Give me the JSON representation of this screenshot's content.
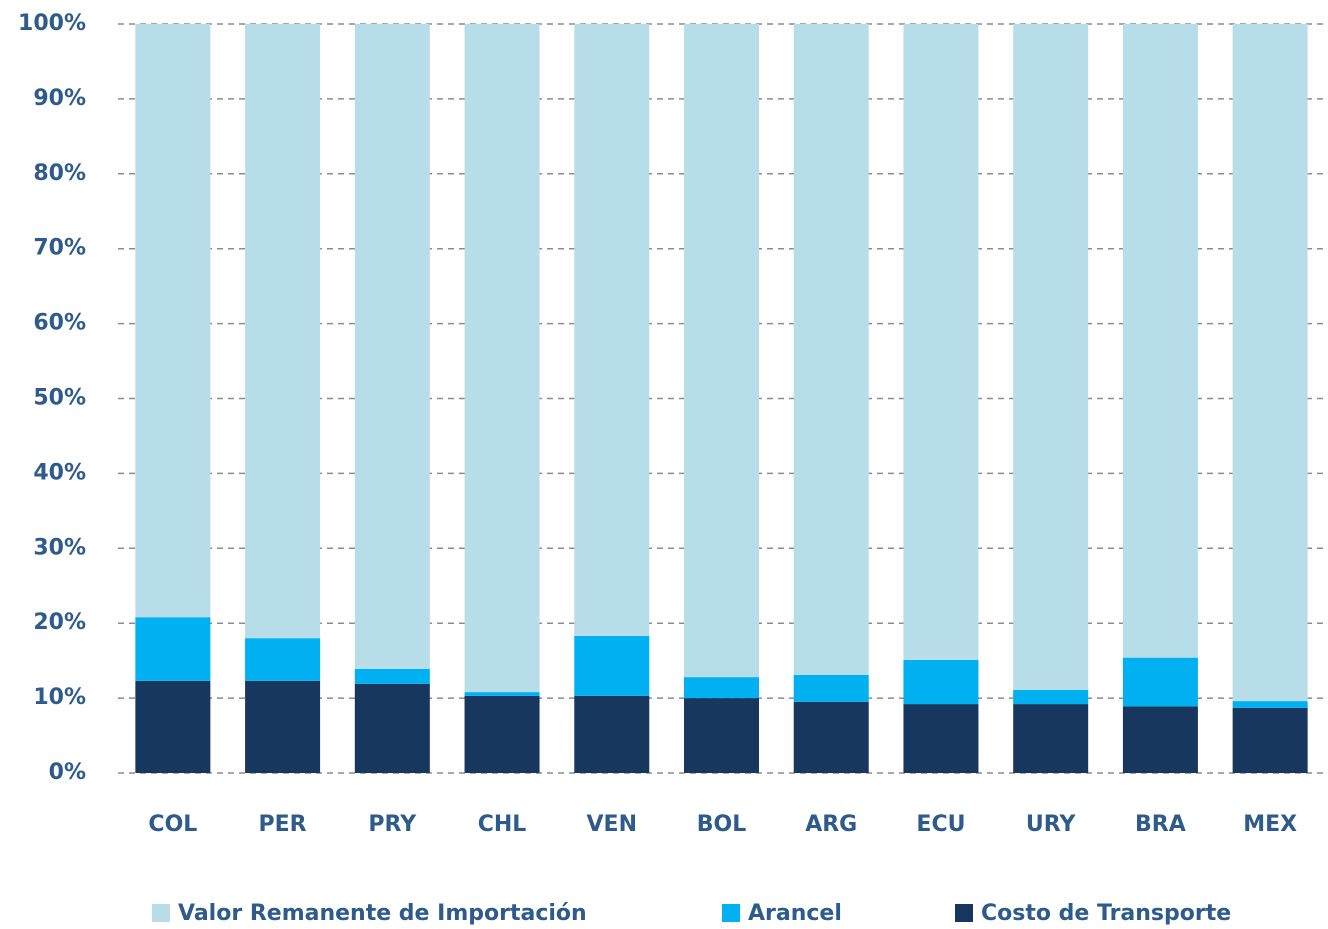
{
  "chart_data": {
    "type": "stacked_bar",
    "categories": [
      "COL",
      "PER",
      "PRY",
      "CHL",
      "VEN",
      "BOL",
      "ARG",
      "ECU",
      "URY",
      "BRA",
      "MEX"
    ],
    "series": [
      {
        "name": "Valor Remanente de Importación",
        "color": "#b7dde8",
        "values": [
          79.2,
          82.0,
          86.1,
          89.2,
          81.7,
          87.2,
          86.9,
          84.9,
          88.9,
          84.6,
          90.4
        ]
      },
      {
        "name": "Arancel",
        "color": "#00b0f0",
        "values": [
          8.5,
          5.7,
          2.0,
          0.5,
          8.0,
          2.8,
          3.6,
          5.9,
          1.9,
          6.5,
          0.9
        ]
      },
      {
        "name": "Costo de Transporte",
        "color": "#17375e",
        "values": [
          12.3,
          12.3,
          11.9,
          10.3,
          10.3,
          10.0,
          9.5,
          9.2,
          9.2,
          8.9,
          8.7
        ]
      }
    ],
    "ylim": [
      0,
      100
    ],
    "yticks": [
      {
        "value": 0,
        "label": "0%"
      },
      {
        "value": 10,
        "label": "10%"
      },
      {
        "value": 20,
        "label": "20%"
      },
      {
        "value": 30,
        "label": "30%"
      },
      {
        "value": 40,
        "label": "40%"
      },
      {
        "value": 50,
        "label": "50%"
      },
      {
        "value": 60,
        "label": "60%"
      },
      {
        "value": 70,
        "label": "70%"
      },
      {
        "value": 80,
        "label": "80%"
      },
      {
        "value": 90,
        "label": "90%"
      },
      {
        "value": 100,
        "label": "100%"
      }
    ],
    "grid": true,
    "legend": "bottom"
  }
}
